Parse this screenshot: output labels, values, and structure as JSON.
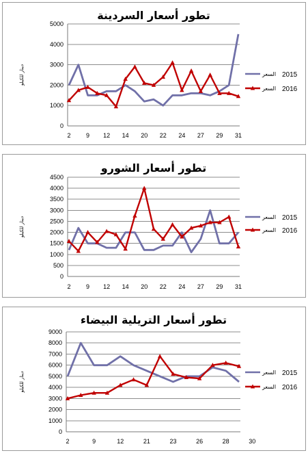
{
  "colors": {
    "series_2015": "#7070a8",
    "series_2016": "#c00000",
    "grid": "#8c8c8c",
    "axis": "#7a7a7a"
  },
  "chart_data": [
    {
      "type": "line",
      "title": "تطور أسعار السردينة",
      "ylabel": "دينار للكيلو",
      "ylim": [
        0,
        5000
      ],
      "yticks": [
        0,
        1000,
        2000,
        3000,
        4000,
        5000
      ],
      "x_labels": [
        "2",
        "9",
        "12",
        "14",
        "20",
        "22",
        "24",
        "27",
        "29",
        "31"
      ],
      "x_label_positions": [
        0,
        2,
        4,
        6,
        8,
        10,
        12,
        14,
        16,
        18
      ],
      "series": [
        {
          "name": "السعر 2015",
          "year": "2015",
          "label": "السعر",
          "marker": "none",
          "values": [
            2000,
            3000,
            1500,
            1500,
            1700,
            1700,
            2000,
            1700,
            1200,
            1300,
            1000,
            1500,
            1500,
            1600,
            1600,
            1500,
            1700,
            2000,
            4500
          ]
        },
        {
          "name": "السعر 2016",
          "year": "2016",
          "label": "السعر",
          "marker": "triangle",
          "values": [
            1250,
            1750,
            1900,
            1600,
            1500,
            950,
            2300,
            2900,
            2100,
            2000,
            2400,
            3100,
            1750,
            2700,
            1700,
            2500,
            1600,
            1600,
            1450
          ]
        }
      ]
    },
    {
      "type": "line",
      "title": "تطور أسعار الشورو",
      "ylabel": "دينار للكيلو",
      "ylim": [
        0,
        4500
      ],
      "yticks": [
        0,
        500,
        1000,
        1500,
        2000,
        2500,
        3000,
        3500,
        4000,
        4500
      ],
      "x_labels": [
        "2",
        "9",
        "12",
        "14",
        "20",
        "22",
        "24",
        "27",
        "29",
        "31"
      ],
      "x_label_positions": [
        0,
        2,
        4,
        6,
        8,
        10,
        12,
        14,
        16,
        18
      ],
      "series": [
        {
          "name": "السعر 2015",
          "year": "2015",
          "label": "السعر",
          "marker": "none",
          "values": [
            1200,
            2200,
            1500,
            1500,
            1300,
            1300,
            2000,
            2000,
            1200,
            1200,
            1400,
            1400,
            2000,
            1100,
            1700,
            3000,
            1500,
            1500,
            2000
          ]
        },
        {
          "name": "السعر 2016",
          "year": "2016",
          "label": "السعر",
          "marker": "triangle",
          "values": [
            1600,
            1150,
            2000,
            1550,
            2050,
            1900,
            1250,
            2750,
            4000,
            2150,
            1700,
            2350,
            1800,
            2200,
            2300,
            2450,
            2450,
            2700,
            1350
          ]
        }
      ]
    },
    {
      "type": "line",
      "title": "تطور أسعار التريلية البيضاء",
      "ylabel": "دينار للكيلو",
      "ylim": [
        0,
        9000
      ],
      "yticks": [
        0,
        1000,
        2000,
        3000,
        4000,
        5000,
        6000,
        7000,
        8000,
        9000
      ],
      "x_labels": [
        "2",
        "9",
        "12",
        "21",
        "23",
        "26",
        "28",
        "30"
      ],
      "x_label_positions": [
        0,
        2,
        4,
        6,
        8,
        10,
        12,
        14
      ],
      "series": [
        {
          "name": "السعر 2015",
          "year": "2015",
          "label": "السعر",
          "marker": "none",
          "values": [
            5000,
            8000,
            6000,
            6000,
            6800,
            6000,
            5500,
            5000,
            4500,
            5000,
            5000,
            5800,
            5500,
            4500
          ]
        },
        {
          "name": "السعر 2016",
          "year": "2016",
          "label": "السعر",
          "marker": "triangle",
          "values": [
            3000,
            3300,
            3500,
            3500,
            4200,
            4700,
            4200,
            6800,
            5200,
            4900,
            4800,
            6000,
            6200,
            5900
          ]
        }
      ]
    }
  ]
}
